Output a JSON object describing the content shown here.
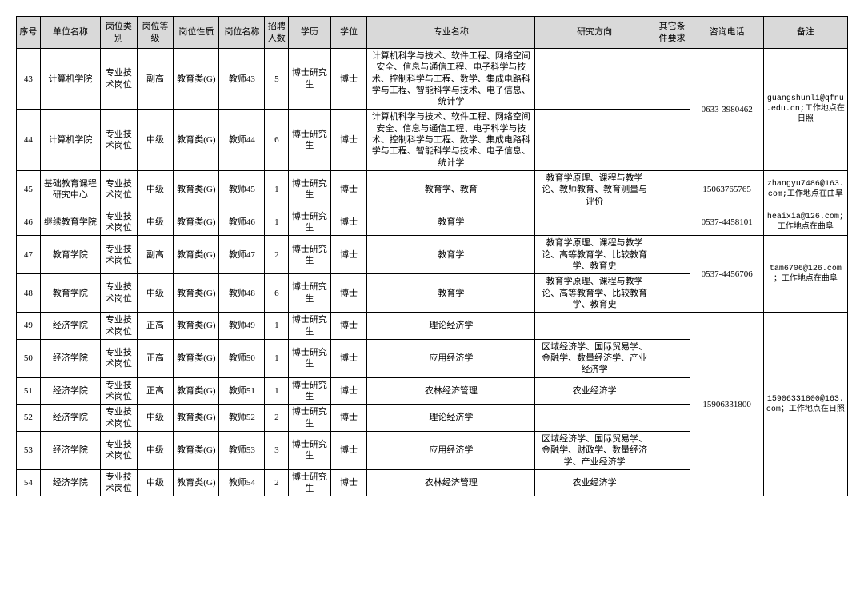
{
  "headers": {
    "seq": "序号",
    "unit": "单位名称",
    "category": "岗位类别",
    "level": "岗位等级",
    "nature": "岗位性质",
    "jobname": "岗位名称",
    "num": "招聘人数",
    "edu": "学历",
    "degree": "学位",
    "major": "专业名称",
    "direction": "研究方向",
    "other": "其它条件要求",
    "phone": "咨询电话",
    "note": "备注"
  },
  "rows": [
    {
      "seq": "43",
      "unit": "计算机学院",
      "category": "专业技术岗位",
      "level": "副高",
      "nature": "教育类(G)",
      "jobname": "教师43",
      "num": "5",
      "edu": "博士研究生",
      "degree": "博士",
      "major": "计算机科学与技术、软件工程、网络空间安全、信息与通信工程、电子科学与技术、控制科学与工程、数学、集成电路科学与工程、智能科学与技术、电子信息、统计学",
      "direction": "",
      "other": "",
      "phoneSpan": 2,
      "phone": "0633-3980462",
      "noteSpan": 2,
      "note": "guangshunli@qfnu.edu.cn;工作地点在日照"
    },
    {
      "seq": "44",
      "unit": "计算机学院",
      "category": "专业技术岗位",
      "level": "中级",
      "nature": "教育类(G)",
      "jobname": "教师44",
      "num": "6",
      "edu": "博士研究生",
      "degree": "博士",
      "major": "计算机科学与技术、软件工程、网络空间安全、信息与通信工程、电子科学与技术、控制科学与工程、数学、集成电路科学与工程、智能科学与技术、电子信息、统计学",
      "direction": "",
      "other": ""
    },
    {
      "seq": "45",
      "unit": "基础教育课程研究中心",
      "category": "专业技术岗位",
      "level": "中级",
      "nature": "教育类(G)",
      "jobname": "教师45",
      "num": "1",
      "edu": "博士研究生",
      "degree": "博士",
      "major": "教育学、教育",
      "direction": "教育学原理、课程与教学论、教师教育、教育测量与评价",
      "other": "",
      "phoneSpan": 1,
      "phone": "15063765765",
      "noteSpan": 1,
      "note": "zhangyu7486@163.com;工作地点在曲阜"
    },
    {
      "seq": "46",
      "unit": "继续教育学院",
      "category": "专业技术岗位",
      "level": "中级",
      "nature": "教育类(G)",
      "jobname": "教师46",
      "num": "1",
      "edu": "博士研究生",
      "degree": "博士",
      "major": "教育学",
      "direction": "",
      "other": "",
      "phoneSpan": 1,
      "phone": "0537-4458101",
      "noteSpan": 1,
      "note": "heaixia@126.com;工作地点在曲阜"
    },
    {
      "seq": "47",
      "unit": "教育学院",
      "category": "专业技术岗位",
      "level": "副高",
      "nature": "教育类(G)",
      "jobname": "教师47",
      "num": "2",
      "edu": "博士研究生",
      "degree": "博士",
      "major": "教育学",
      "direction": "教育学原理、课程与教学论、高等教育学、比较教育学、教育史",
      "other": "",
      "phoneSpan": 2,
      "phone": "0537-4456706",
      "noteSpan": 2,
      "note": "tam6706@126.com；工作地点在曲阜"
    },
    {
      "seq": "48",
      "unit": "教育学院",
      "category": "专业技术岗位",
      "level": "中级",
      "nature": "教育类(G)",
      "jobname": "教师48",
      "num": "6",
      "edu": "博士研究生",
      "degree": "博士",
      "major": "教育学",
      "direction": "教育学原理、课程与教学论、高等教育学、比较教育学、教育史",
      "other": ""
    },
    {
      "seq": "49",
      "unit": "经济学院",
      "category": "专业技术岗位",
      "level": "正高",
      "nature": "教育类(G)",
      "jobname": "教师49",
      "num": "1",
      "edu": "博士研究生",
      "degree": "博士",
      "major": "理论经济学",
      "direction": "",
      "other": "",
      "phoneSpan": 6,
      "phone": "15906331800",
      "noteSpan": 6,
      "note": "15906331800@163.com；工作地点在日照"
    },
    {
      "seq": "50",
      "unit": "经济学院",
      "category": "专业技术岗位",
      "level": "正高",
      "nature": "教育类(G)",
      "jobname": "教师50",
      "num": "1",
      "edu": "博士研究生",
      "degree": "博士",
      "major": "应用经济学",
      "direction": "区域经济学、国际贸易学、金融学、数量经济学、产业经济学",
      "other": ""
    },
    {
      "seq": "51",
      "unit": "经济学院",
      "category": "专业技术岗位",
      "level": "正高",
      "nature": "教育类(G)",
      "jobname": "教师51",
      "num": "1",
      "edu": "博士研究生",
      "degree": "博士",
      "major": "农林经济管理",
      "direction": "农业经济学",
      "other": ""
    },
    {
      "seq": "52",
      "unit": "经济学院",
      "category": "专业技术岗位",
      "level": "中级",
      "nature": "教育类(G)",
      "jobname": "教师52",
      "num": "2",
      "edu": "博士研究生",
      "degree": "博士",
      "major": "理论经济学",
      "direction": "",
      "other": ""
    },
    {
      "seq": "53",
      "unit": "经济学院",
      "category": "专业技术岗位",
      "level": "中级",
      "nature": "教育类(G)",
      "jobname": "教师53",
      "num": "3",
      "edu": "博士研究生",
      "degree": "博士",
      "major": "应用经济学",
      "direction": "区域经济学、国际贸易学、金融学、财政学、数量经济学、产业经济学",
      "other": ""
    },
    {
      "seq": "54",
      "unit": "经济学院",
      "category": "专业技术岗位",
      "level": "中级",
      "nature": "教育类(G)",
      "jobname": "教师54",
      "num": "2",
      "edu": "博士研究生",
      "degree": "博士",
      "major": "农林经济管理",
      "direction": "农业经济学",
      "other": ""
    }
  ]
}
